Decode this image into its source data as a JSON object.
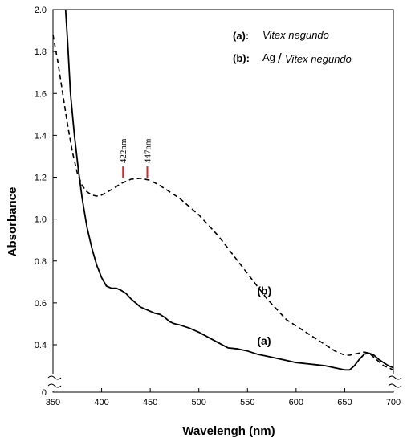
{
  "chart_data": {
    "type": "line",
    "xlabel": "Wavelengh (nm)",
    "ylabel": "Absorbance",
    "xlim": [
      350,
      700
    ],
    "ylim": [
      0,
      2.0
    ],
    "axis_break": "y-axis break near 0",
    "x_ticks": [
      "350",
      "400",
      "450",
      "500",
      "550",
      "600",
      "650",
      "700"
    ],
    "y_ticks": [
      "0",
      "0.4",
      "0.6",
      "0.8",
      "1.0",
      "1.2",
      "1.4",
      "1.6",
      "1.8",
      "2.0"
    ],
    "legend": {
      "a_key": "(a):",
      "a_text": "Vitex negundo",
      "b_key": "(b):",
      "b_prefix": "Ag",
      "b_slash": "/",
      "b_text": "Vitex negundo",
      "placement": "top-right"
    },
    "annotations": {
      "peak1": "422nm",
      "peak2": "447nm",
      "peak1_x": 422,
      "peak2_x": 447,
      "peak1_y": 1.19,
      "peak2_y": 1.19,
      "marker_color": "#d62728"
    },
    "series": [
      {
        "name": "(a)",
        "style": "solid",
        "label_at": {
          "x": 560,
          "y": 0.4
        },
        "x": [
          363,
          365,
          368,
          372,
          376,
          380,
          385,
          390,
          395,
          400,
          405,
          410,
          415,
          420,
          425,
          430,
          435,
          440,
          445,
          450,
          455,
          460,
          465,
          470,
          475,
          480,
          490,
          500,
          510,
          520,
          530,
          540,
          550,
          560,
          570,
          580,
          590,
          600,
          610,
          620,
          630,
          640,
          650,
          655,
          660,
          665,
          670,
          675,
          680,
          685,
          690,
          695,
          700
        ],
        "y": [
          2.0,
          1.85,
          1.6,
          1.4,
          1.24,
          1.1,
          0.96,
          0.86,
          0.78,
          0.72,
          0.68,
          0.67,
          0.67,
          0.66,
          0.645,
          0.62,
          0.6,
          0.58,
          0.57,
          0.56,
          0.55,
          0.545,
          0.53,
          0.51,
          0.5,
          0.495,
          0.48,
          0.46,
          0.435,
          0.41,
          0.385,
          0.38,
          0.37,
          0.355,
          0.345,
          0.335,
          0.325,
          0.315,
          0.31,
          0.305,
          0.3,
          0.29,
          0.28,
          0.28,
          0.3,
          0.33,
          0.355,
          0.36,
          0.35,
          0.33,
          0.315,
          0.3,
          0.29
        ]
      },
      {
        "name": "(b)",
        "style": "dashed",
        "label_at": {
          "x": 560,
          "y": 0.64
        },
        "x": [
          350,
          355,
          360,
          365,
          370,
          375,
          380,
          385,
          390,
          395,
          400,
          410,
          420,
          430,
          440,
          450,
          460,
          470,
          480,
          490,
          500,
          510,
          520,
          530,
          540,
          550,
          560,
          570,
          580,
          590,
          600,
          610,
          620,
          630,
          640,
          650,
          655,
          660,
          665,
          670,
          675,
          680,
          685,
          690,
          695,
          700
        ],
        "y": [
          1.88,
          1.75,
          1.6,
          1.45,
          1.32,
          1.22,
          1.16,
          1.13,
          1.115,
          1.11,
          1.115,
          1.14,
          1.17,
          1.19,
          1.195,
          1.185,
          1.16,
          1.13,
          1.1,
          1.06,
          1.02,
          0.97,
          0.92,
          0.86,
          0.8,
          0.74,
          0.68,
          0.62,
          0.57,
          0.52,
          0.49,
          0.46,
          0.43,
          0.4,
          0.37,
          0.35,
          0.35,
          0.355,
          0.36,
          0.365,
          0.36,
          0.34,
          0.32,
          0.3,
          0.29,
          0.28
        ]
      }
    ]
  }
}
